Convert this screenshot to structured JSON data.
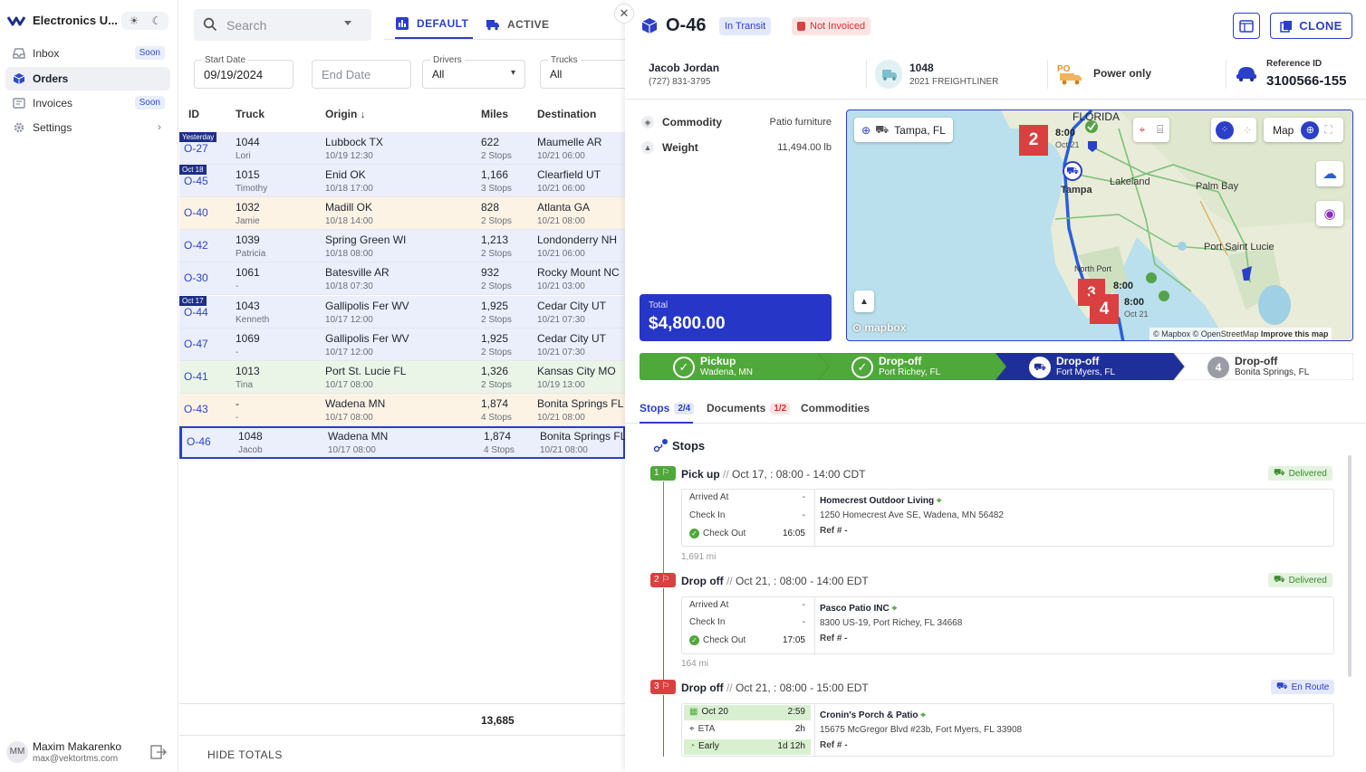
{
  "sidebar": {
    "app_name": "Electronics U...",
    "nav": [
      {
        "label": "Inbox",
        "badge": "Soon",
        "icon": "inbox-icon"
      },
      {
        "label": "Orders",
        "icon": "box-icon",
        "active": true
      },
      {
        "label": "Invoices",
        "badge": "Soon",
        "icon": "invoice-icon"
      },
      {
        "label": "Settings",
        "icon": "gear-icon"
      }
    ],
    "user": {
      "initials": "MM",
      "name": "Maxim Makarenko",
      "email": "max@vektortms.com"
    }
  },
  "list": {
    "search_placeholder": "Search",
    "tabs": [
      {
        "label": "DEFAULT",
        "active": true
      },
      {
        "label": "ACTIVE"
      }
    ],
    "filters": {
      "start_date": {
        "label": "Start Date",
        "value": "09/19/2024"
      },
      "end_date": {
        "placeholder": "End Date"
      },
      "drivers": {
        "label": "Drivers",
        "value": "All"
      },
      "trucks": {
        "label": "Trucks",
        "value": "All"
      }
    },
    "columns": [
      "ID",
      "Truck",
      "Origin",
      "Miles",
      "Destination"
    ],
    "rows": [
      {
        "tag": "Yesterday",
        "id": "O-27",
        "truck": "1044",
        "driver": "Lori",
        "origin": "Lubbock TX",
        "origin_time": "10/19 12:30",
        "miles": "622",
        "stops": "2 Stops",
        "dest": "Maumelle AR",
        "dest_time": "10/21 06:00",
        "tone": "blue"
      },
      {
        "tag": "Oct 18",
        "id": "O-45",
        "truck": "1015",
        "driver": "Timothy",
        "origin": "Enid OK",
        "origin_time": "10/18 17:00",
        "miles": "1,166",
        "stops": "3 Stops",
        "dest": "Clearfield UT",
        "dest_time": "10/21 06:00",
        "tone": "blue"
      },
      {
        "tag": "",
        "id": "O-40",
        "truck": "1032",
        "driver": "Jamie",
        "origin": "Madill OK",
        "origin_time": "10/18 14:00",
        "miles": "828",
        "stops": "2 Stops",
        "dest": "Atlanta GA",
        "dest_time": "10/21 08:00",
        "tone": "orange"
      },
      {
        "tag": "",
        "id": "O-42",
        "truck": "1039",
        "driver": "Patricia",
        "origin": "Spring Green WI",
        "origin_time": "10/18 08:00",
        "miles": "1,213",
        "stops": "2 Stops",
        "dest": "Londonderry NH",
        "dest_time": "10/21 06:00",
        "tone": "blue"
      },
      {
        "tag": "",
        "id": "O-30",
        "truck": "1061",
        "driver": "-",
        "origin": "Batesville AR",
        "origin_time": "10/18 07:30",
        "miles": "932",
        "stops": "2 Stops",
        "dest": "Rocky Mount NC",
        "dest_time": "10/21 03:00",
        "tone": "blue"
      },
      {
        "tag": "Oct 17",
        "id": "O-44",
        "truck": "1043",
        "driver": "Kenneth",
        "origin": "Gallipolis Fer WV",
        "origin_time": "10/17 12:00",
        "miles": "1,925",
        "stops": "2 Stops",
        "dest": "Cedar City UT",
        "dest_time": "10/21 07:30",
        "tone": "blue"
      },
      {
        "tag": "",
        "id": "O-47",
        "truck": "1069",
        "driver": "-",
        "origin": "Gallipolis Fer WV",
        "origin_time": "10/17 12:00",
        "miles": "1,925",
        "stops": "2 Stops",
        "dest": "Cedar City UT",
        "dest_time": "10/21 07:30",
        "tone": "blue"
      },
      {
        "tag": "",
        "id": "O-41",
        "truck": "1013",
        "driver": "Tina",
        "origin": "Port St. Lucie FL",
        "origin_time": "10/17 08:00",
        "miles": "1,326",
        "stops": "2 Stops",
        "dest": "Kansas City MO",
        "dest_time": "10/19 13:00",
        "tone": "green"
      },
      {
        "tag": "",
        "id": "O-43",
        "truck": "-",
        "driver": "-",
        "origin": "Wadena MN",
        "origin_time": "10/17 08:00",
        "miles": "1,874",
        "stops": "4 Stops",
        "dest": "Bonita Springs FL",
        "dest_time": "10/21 08:00",
        "tone": "orange"
      },
      {
        "tag": "",
        "id": "O-46",
        "truck": "1048",
        "driver": "Jacob",
        "origin": "Wadena MN",
        "origin_time": "10/17 08:00",
        "miles": "1,874",
        "stops": "4 Stops",
        "dest": "Bonita Springs FL",
        "dest_time": "10/21 08:00",
        "tone": "blue",
        "selected": true
      }
    ],
    "total_miles": "13,685",
    "hide_totals": "HIDE TOTALS"
  },
  "detail": {
    "order_id": "O-46",
    "status_badge": "In Transit",
    "invoice_badge": "Not Invoiced",
    "clone_label": "CLONE",
    "driver_name": "Jacob Jordan",
    "driver_phone": "(727) 831-3795",
    "truck_number": "1048",
    "truck_model": "2021 FREIGHTLINER",
    "service": "Power only",
    "reference_label": "Reference ID",
    "reference_value": "3100566-155",
    "commodity_label": "Commodity",
    "commodity_value": "Patio furniture",
    "weight_label": "Weight",
    "weight_value": "11,494.00 lb",
    "total_label": "Total",
    "total_value": "$4,800.00",
    "map": {
      "location_chip": "Tampa, FL",
      "toggle_label": "Map",
      "places": [
        "Tampa",
        "Lakeland",
        "Palm Bay",
        "Port Saint Lucie",
        "North Port",
        "FLORIDA"
      ],
      "markers": [
        {
          "num": "2",
          "time": "8:00",
          "date": "Oct 21"
        },
        {
          "num": "3",
          "time": "8:00",
          "date": ""
        },
        {
          "num": "4",
          "time": "8:00",
          "date": "Oct 21"
        }
      ],
      "attribution": "© Mapbox © OpenStreetMap",
      "improve": "Improve this map",
      "brand": "mapbox"
    },
    "steps": [
      {
        "title": "Pickup",
        "place": "Wadena, MN",
        "state": "done"
      },
      {
        "title": "Drop-off",
        "place": "Port Richey, FL",
        "state": "done"
      },
      {
        "title": "Drop-off",
        "place": "Fort Myers, FL",
        "state": "current"
      },
      {
        "title": "Drop-off",
        "place": "Bonita Springs, FL",
        "state": "pending",
        "num": "4"
      }
    ],
    "tabs": [
      {
        "label": "Stops",
        "count": "2/4",
        "active": true
      },
      {
        "label": "Documents",
        "count": "1/2"
      },
      {
        "label": "Commodities",
        "count": ""
      }
    ],
    "stops_title": "Stops",
    "stops": [
      {
        "num": "1",
        "type": "Pick up",
        "window": "Oct 17, : 08:00 - 14:00 CDT",
        "status": "Delivered",
        "arrived_label": "Arrived At",
        "arrived": "-",
        "checkin_label": "Check In",
        "checkin": "-",
        "checkout_label": "Check Out",
        "checkout": "16:05",
        "name": "Homecrest Outdoor Living",
        "address": "1250 Homecrest Ave SE, Wadena, MN 56482",
        "ref": "Ref # -",
        "miles_after": "1,691 mi"
      },
      {
        "num": "2",
        "type": "Drop off",
        "window": "Oct 21, : 08:00 - 14:00 EDT",
        "status": "Delivered",
        "arrived_label": "Arrived At",
        "arrived": "-",
        "checkin_label": "Check In",
        "checkin": "-",
        "checkout_label": "Check Out",
        "checkout": "17:05",
        "name": "Pasco Patio INC",
        "address": "8300 US-19, Port Richey, FL 34668",
        "ref": "Ref # -",
        "miles_after": "164 mi"
      },
      {
        "num": "3",
        "type": "Drop off",
        "window": "Oct 21, : 08:00 - 15:00 EDT",
        "status": "En Route",
        "row1_label": "Oct 20",
        "row1": "2:59",
        "eta_label": "ETA",
        "eta": "2h",
        "early_label": "Early",
        "early": "1d 12h",
        "name": "Cronin's Porch & Patio",
        "address": "15675 McGregor Blvd #23b, Fort Myers, FL 33908",
        "ref": "Ref # -"
      }
    ]
  },
  "colors": {
    "accent": "#2b3fc8",
    "success": "#4fa83a",
    "danger": "#d94040",
    "total_bg": "#2636c6"
  }
}
